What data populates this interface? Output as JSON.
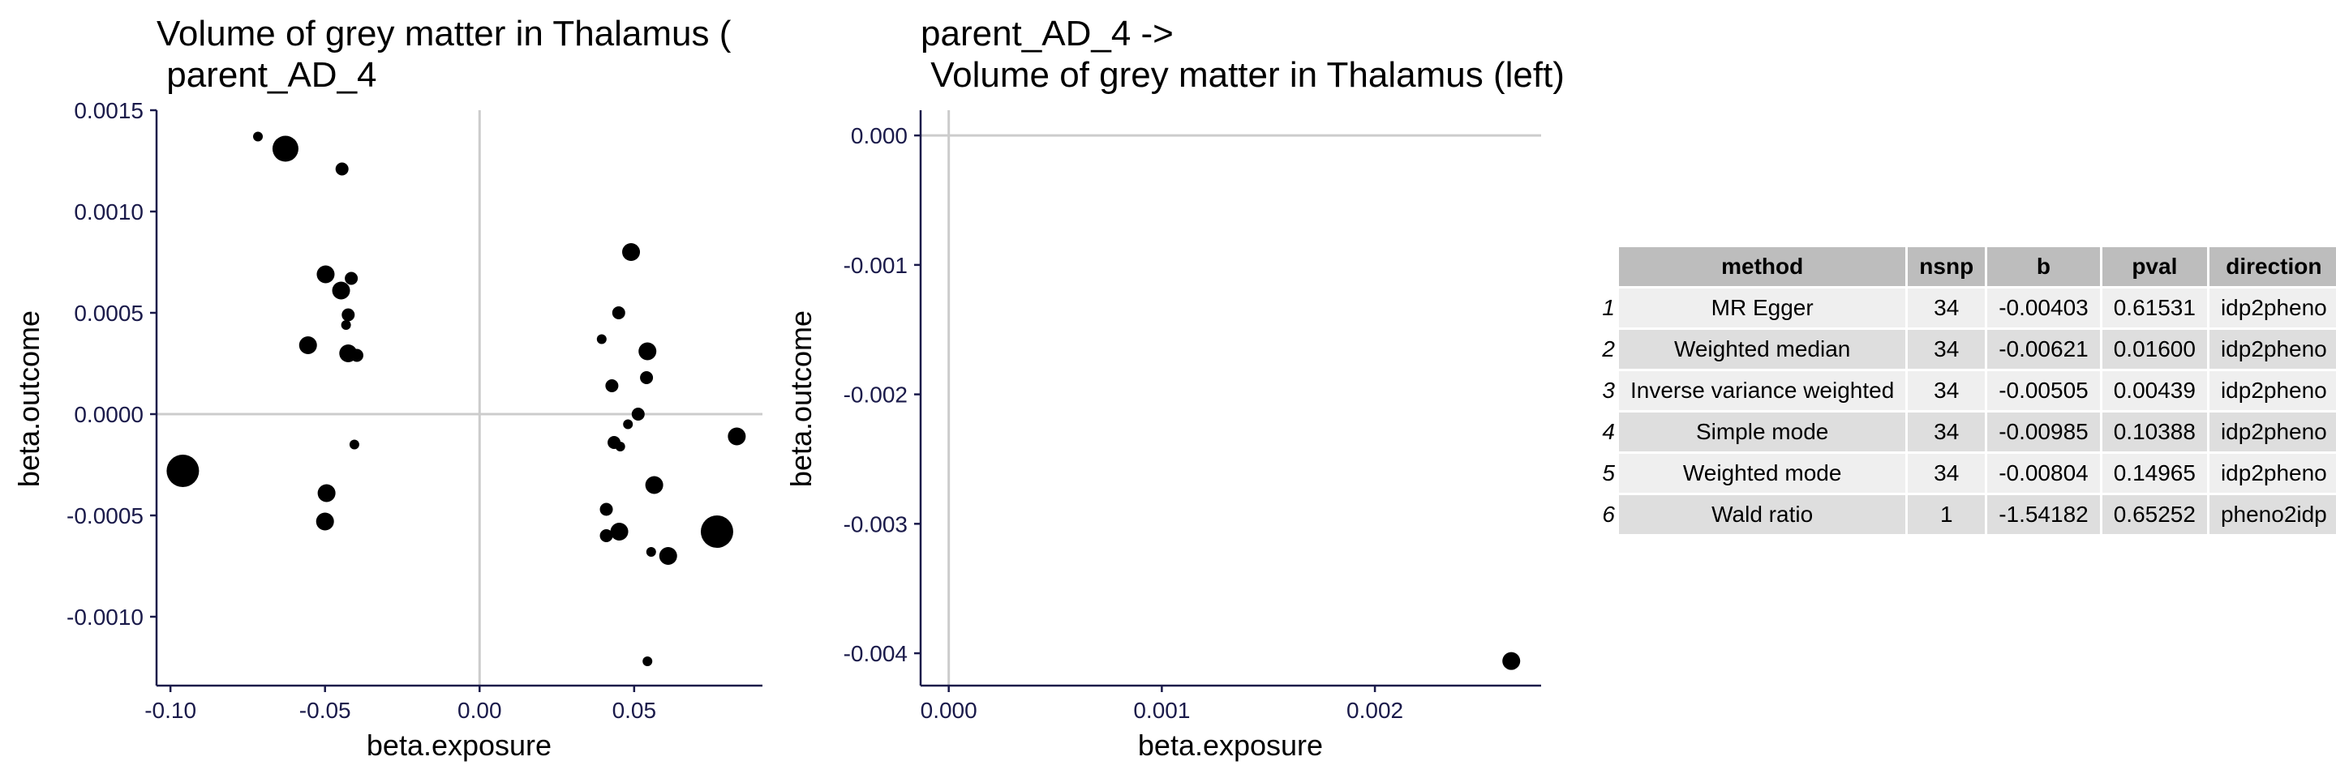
{
  "chart_data": [
    {
      "type": "scatter",
      "title_line1": "Volume of grey matter in Thalamus (",
      "title_line2": " parent_AD_4",
      "xlabel": "beta.exposure",
      "ylabel": "beta.outcome",
      "xlim": [
        -0.1045,
        0.0915
      ],
      "ylim": [
        -0.00134,
        0.0015
      ],
      "xticks": [
        -0.1,
        -0.05,
        0.0,
        0.05
      ],
      "xtick_labels": [
        "-0.10",
        "-0.05",
        "0.00",
        "0.05"
      ],
      "yticks": [
        -0.001,
        -0.0005,
        0.0,
        0.0005,
        0.001,
        0.0015
      ],
      "ytick_labels": [
        "-0.0010",
        "-0.0005",
        "0.0000",
        "0.0005",
        "0.0010",
        "0.0015"
      ],
      "points": [
        {
          "x": -0.0717,
          "y": 0.00137,
          "size": "xs"
        },
        {
          "x": -0.0628,
          "y": 0.00131,
          "size": "l"
        },
        {
          "x": -0.0445,
          "y": 0.00121,
          "size": "s"
        },
        {
          "x": -0.0498,
          "y": 0.00069,
          "size": "m"
        },
        {
          "x": -0.0415,
          "y": 0.00067,
          "size": "s"
        },
        {
          "x": -0.0448,
          "y": 0.00061,
          "size": "m"
        },
        {
          "x": -0.0425,
          "y": 0.00049,
          "size": "s"
        },
        {
          "x": -0.0432,
          "y": 0.00044,
          "size": "xs"
        },
        {
          "x": -0.0555,
          "y": 0.00034,
          "size": "m"
        },
        {
          "x": -0.0425,
          "y": 0.0003,
          "size": "m"
        },
        {
          "x": -0.0397,
          "y": 0.00029,
          "size": "s"
        },
        {
          "x": -0.0405,
          "y": -0.00015,
          "size": "xs"
        },
        {
          "x": -0.096,
          "y": -0.00028,
          "size": "xl"
        },
        {
          "x": -0.0495,
          "y": -0.00039,
          "size": "m"
        },
        {
          "x": -0.05,
          "y": -0.00053,
          "size": "m"
        },
        {
          "x": 0.049,
          "y": 0.0008,
          "size": "m"
        },
        {
          "x": 0.045,
          "y": 0.0005,
          "size": "s"
        },
        {
          "x": 0.0395,
          "y": 0.00037,
          "size": "xs"
        },
        {
          "x": 0.0543,
          "y": 0.00031,
          "size": "m"
        },
        {
          "x": 0.054,
          "y": 0.00018,
          "size": "s"
        },
        {
          "x": 0.0428,
          "y": 0.00014,
          "size": "s"
        },
        {
          "x": 0.0513,
          "y": 0.0,
          "size": "s"
        },
        {
          "x": 0.048,
          "y": -5e-05,
          "size": "xs"
        },
        {
          "x": 0.0832,
          "y": -0.00011,
          "size": "m"
        },
        {
          "x": 0.0435,
          "y": -0.00014,
          "size": "s"
        },
        {
          "x": 0.0455,
          "y": -0.00016,
          "size": "xs"
        },
        {
          "x": 0.0565,
          "y": -0.00035,
          "size": "m"
        },
        {
          "x": 0.041,
          "y": -0.00047,
          "size": "s"
        },
        {
          "x": 0.0452,
          "y": -0.00058,
          "size": "m"
        },
        {
          "x": 0.041,
          "y": -0.0006,
          "size": "s"
        },
        {
          "x": 0.0768,
          "y": -0.00058,
          "size": "xl"
        },
        {
          "x": 0.0555,
          "y": -0.00068,
          "size": "xs"
        },
        {
          "x": 0.061,
          "y": -0.0007,
          "size": "m"
        },
        {
          "x": 0.0543,
          "y": -0.00122,
          "size": "xs"
        }
      ]
    },
    {
      "type": "scatter",
      "title_line1": "parent_AD_4 ->",
      "title_line2": " Volume of grey matter in Thalamus (left)",
      "xlabel": "beta.exposure",
      "ylabel": "beta.outcome",
      "xlim": [
        -0.000132,
        0.00278
      ],
      "ylim": [
        -0.00425,
        0.000195
      ],
      "xticks": [
        0.0,
        0.001,
        0.002
      ],
      "xtick_labels": [
        "0.000",
        "0.001",
        "0.002"
      ],
      "yticks": [
        -0.004,
        -0.003,
        -0.002,
        -0.001,
        0.0
      ],
      "ytick_labels": [
        "-0.004",
        "-0.003",
        "-0.002",
        "-0.001",
        "0.000"
      ],
      "points": [
        {
          "x": 0.00264,
          "y": -0.00406,
          "size": "m"
        }
      ]
    }
  ],
  "results_table": {
    "headers": [
      "method",
      "nsnp",
      "b",
      "pval",
      "direction"
    ],
    "rows": [
      {
        "idx": "1",
        "method": "MR Egger",
        "nsnp": "34",
        "b": "-0.00403",
        "pval": "0.61531",
        "direction": "idp2pheno"
      },
      {
        "idx": "2",
        "method": "Weighted median",
        "nsnp": "34",
        "b": "-0.00621",
        "pval": "0.01600",
        "direction": "idp2pheno"
      },
      {
        "idx": "3",
        "method": "Inverse variance weighted",
        "nsnp": "34",
        "b": "-0.00505",
        "pval": "0.00439",
        "direction": "idp2pheno"
      },
      {
        "idx": "4",
        "method": "Simple mode",
        "nsnp": "34",
        "b": "-0.00985",
        "pval": "0.10388",
        "direction": "idp2pheno"
      },
      {
        "idx": "5",
        "method": "Weighted mode",
        "nsnp": "34",
        "b": "-0.00804",
        "pval": "0.14965",
        "direction": "idp2pheno"
      },
      {
        "idx": "6",
        "method": "Wald ratio",
        "nsnp": "1",
        "b": "-1.54182",
        "pval": "0.65252",
        "direction": "pheno2idp"
      }
    ]
  },
  "colors": {
    "points": "#000000",
    "refline": "#cccccc",
    "axis": "#1a1a4a",
    "header_bg": "#bdbdbd",
    "row_light": "#efefef",
    "row_dark": "#dedede"
  }
}
